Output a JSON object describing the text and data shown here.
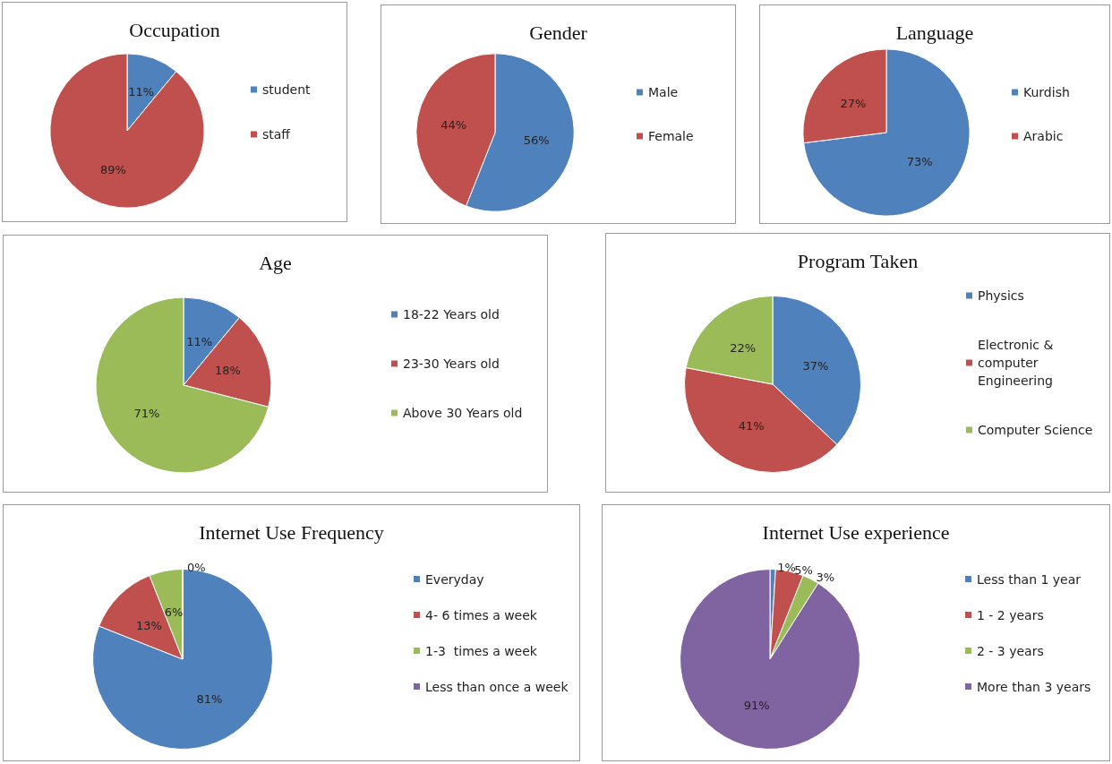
{
  "chart_data": [
    {
      "type": "pie",
      "title": "Occupation",
      "categories": [
        "student",
        "staff"
      ],
      "values": [
        11,
        89
      ],
      "colors": [
        "#4f81bd",
        "#c0504d"
      ],
      "value_labels": [
        "11%",
        "89%"
      ],
      "legend": "right"
    },
    {
      "type": "pie",
      "title": "Gender",
      "categories": [
        "Male",
        "Female"
      ],
      "values": [
        56,
        44
      ],
      "colors": [
        "#4f81bd",
        "#c0504d"
      ],
      "value_labels": [
        "56%",
        "44%"
      ],
      "legend": "right"
    },
    {
      "type": "pie",
      "title": "Language",
      "categories": [
        "Kurdish",
        "Arabic"
      ],
      "values": [
        73,
        27
      ],
      "colors": [
        "#4f81bd",
        "#c0504d"
      ],
      "value_labels": [
        "73%",
        "27%"
      ],
      "legend": "right"
    },
    {
      "type": "pie",
      "title": "Age",
      "categories": [
        "18-22 Years old",
        "23-30 Years old",
        "Above 30 Years old"
      ],
      "values": [
        11,
        18,
        71
      ],
      "colors": [
        "#4f81bd",
        "#c0504d",
        "#9bbb59"
      ],
      "value_labels": [
        "11%",
        "18%",
        "71%"
      ],
      "legend": "right"
    },
    {
      "type": "pie",
      "title": "Program Taken",
      "categories": [
        "Physics",
        "Electronic & computer Engineering",
        "Computer Science"
      ],
      "values": [
        37,
        41,
        22
      ],
      "colors": [
        "#4f81bd",
        "#c0504d",
        "#9bbb59"
      ],
      "value_labels": [
        "37%",
        "41%",
        "22%"
      ],
      "legend": "right"
    },
    {
      "type": "pie",
      "title": "Internet Use Frequency",
      "categories": [
        "Everyday",
        "4- 6 times a week",
        "1-3  times a week",
        "Less than once a week"
      ],
      "values": [
        81,
        13,
        6,
        0
      ],
      "colors": [
        "#4f81bd",
        "#c0504d",
        "#9bbb59",
        "#8064a2"
      ],
      "value_labels": [
        "81%",
        "13%",
        "6%",
        "0%"
      ],
      "legend": "right"
    },
    {
      "type": "pie",
      "title": "Internet Use experience",
      "categories": [
        "Less than 1 year",
        "1 - 2 years",
        "2 - 3 years",
        "More than 3 years"
      ],
      "values": [
        1,
        5,
        3,
        91
      ],
      "colors": [
        "#4f81bd",
        "#c0504d",
        "#9bbb59",
        "#8064a2"
      ],
      "value_labels": [
        "1%",
        "5%",
        "3%",
        "91%"
      ],
      "legend": "right"
    }
  ]
}
